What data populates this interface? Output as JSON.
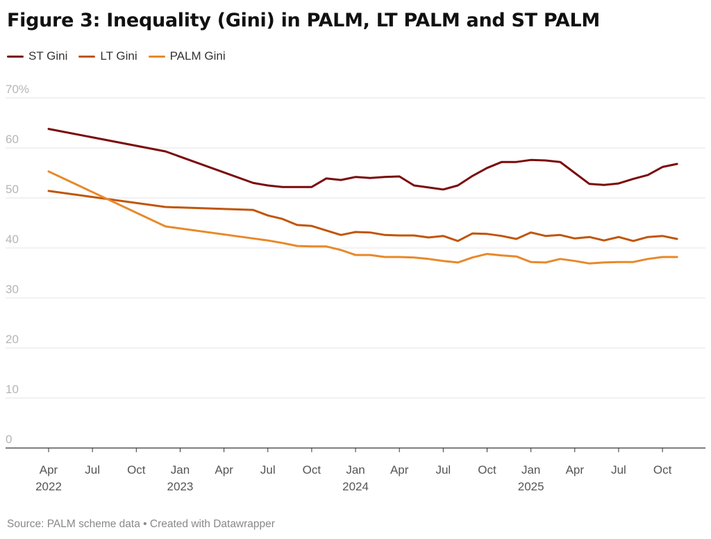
{
  "title": "Figure 3: Inequality (Gini) in PALM, LT PALM and ST PALM",
  "source": "Source: PALM scheme data • Created with Datawrapper",
  "chart_data": {
    "type": "line",
    "title": "Figure 3: Inequality (Gini) in PALM, LT PALM and ST PALM",
    "xlabel": "",
    "ylabel": "",
    "ylim": [
      0,
      70
    ],
    "yticks": [
      0,
      10,
      20,
      30,
      40,
      50,
      60,
      70
    ],
    "ytick_labels": [
      "0",
      "10",
      "20",
      "30",
      "40",
      "50",
      "60",
      "70%"
    ],
    "grid": true,
    "legend_position": "top-left",
    "xticks": [
      {
        "m": 0,
        "label": "Apr",
        "year": "2022"
      },
      {
        "m": 3,
        "label": "Jul"
      },
      {
        "m": 6,
        "label": "Oct"
      },
      {
        "m": 9,
        "label": "Jan",
        "year": "2023"
      },
      {
        "m": 12,
        "label": "Apr"
      },
      {
        "m": 15,
        "label": "Jul"
      },
      {
        "m": 18,
        "label": "Oct"
      },
      {
        "m": 21,
        "label": "Jan",
        "year": "2024"
      },
      {
        "m": 24,
        "label": "Apr"
      },
      {
        "m": 27,
        "label": "Jul"
      },
      {
        "m": 30,
        "label": "Oct"
      },
      {
        "m": 33,
        "label": "Jan",
        "year": "2025"
      },
      {
        "m": 36,
        "label": "Apr"
      },
      {
        "m": 39,
        "label": "Jul"
      },
      {
        "m": 42,
        "label": "Oct"
      }
    ],
    "x_months_since_apr_2022": [
      0,
      8,
      14,
      15,
      16,
      17,
      18,
      19,
      20,
      21,
      22,
      23,
      24,
      25,
      26,
      27,
      28,
      29,
      30,
      31,
      32,
      33,
      34,
      35,
      36,
      37,
      38,
      39,
      40,
      41,
      42,
      43
    ],
    "series": [
      {
        "name": "ST Gini",
        "color": "#7a0a0a",
        "values": [
          63.8,
          59.3,
          53.0,
          52.5,
          52.2,
          52.2,
          52.2,
          53.9,
          53.6,
          54.2,
          54.0,
          54.2,
          54.3,
          52.5,
          52.1,
          51.7,
          52.5,
          54.4,
          56.0,
          57.2,
          57.2,
          57.6,
          57.5,
          57.2,
          55.0,
          52.8,
          52.6,
          52.9,
          53.8,
          54.6,
          56.2,
          56.8
        ]
      },
      {
        "name": "LT Gini",
        "color": "#c0560a",
        "values": [
          51.4,
          48.2,
          47.6,
          46.5,
          45.8,
          44.6,
          44.4,
          43.5,
          42.6,
          43.2,
          43.1,
          42.6,
          42.5,
          42.5,
          42.1,
          42.4,
          41.4,
          42.9,
          42.8,
          42.4,
          41.8,
          43.1,
          42.4,
          42.6,
          41.9,
          42.2,
          41.5,
          42.2,
          41.4,
          42.2,
          42.4,
          41.8
        ]
      },
      {
        "name": "PALM Gini",
        "color": "#e8892a",
        "values": [
          55.3,
          44.3,
          41.9,
          41.5,
          41.0,
          40.4,
          40.3,
          40.3,
          39.6,
          38.6,
          38.6,
          38.2,
          38.2,
          38.1,
          37.8,
          37.4,
          37.1,
          38.1,
          38.8,
          38.5,
          38.3,
          37.2,
          37.1,
          37.8,
          37.4,
          36.9,
          37.1,
          37.2,
          37.2,
          37.8,
          38.2,
          38.2
        ]
      }
    ]
  }
}
